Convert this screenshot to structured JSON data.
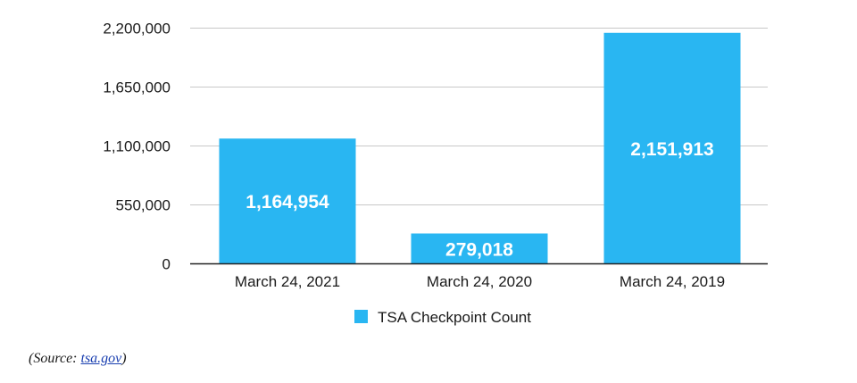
{
  "chart_data": {
    "type": "bar",
    "categories": [
      "March 24, 2021",
      "March 24, 2020",
      "March 24, 2019"
    ],
    "series": [
      {
        "name": "TSA Checkpoint Count",
        "values": [
          1164954,
          279018,
          2151913
        ],
        "value_labels": [
          "1,164,954",
          "279,018",
          "2,151,913"
        ]
      }
    ],
    "ylim": [
      0,
      2200000
    ],
    "yticks": [
      0,
      550000,
      1100000,
      1650000,
      2200000
    ],
    "ytick_labels": [
      "0",
      "550,000",
      "1,100,000",
      "1,650,000",
      "2,200,000"
    ],
    "grid": true,
    "legend_position": "bottom-center",
    "bar_color": "#29b6f2"
  },
  "source": {
    "prefix": "(Source: ",
    "link_text": "tsa.gov",
    "suffix": ")"
  }
}
